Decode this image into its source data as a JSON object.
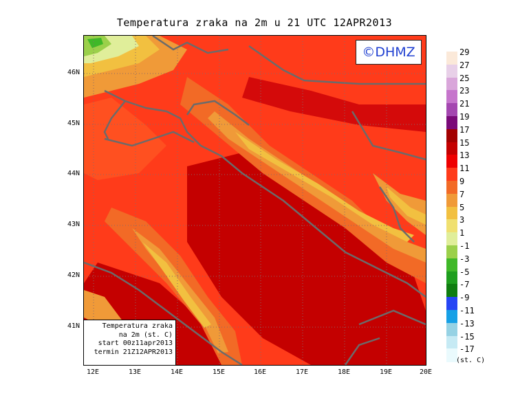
{
  "title": "Temperatura zraka na 2m u 21 UTC 12APR2013",
  "logo": "©DHMZ",
  "info_box": {
    "line1": "Temperatura zraka",
    "line2": "na 2m (st. C)",
    "line3": "start 00z11apr2013",
    "line4": "termin 21Z12APR2013"
  },
  "axes": {
    "y_ticks": [
      "46N",
      "45N",
      "44N",
      "43N",
      "42N",
      "41N"
    ],
    "x_ticks": [
      "12E",
      "13E",
      "14E",
      "15E",
      "16E",
      "17E",
      "18E",
      "19E",
      "20E"
    ]
  },
  "legend": {
    "labels": [
      "29",
      "27",
      "25",
      "23",
      "21",
      "19",
      "17",
      "15",
      "13",
      "11",
      "9",
      "7",
      "5",
      "3",
      "1",
      "-1",
      "-3",
      "-5",
      "-7",
      "-9",
      "-11",
      "-13",
      "-15",
      "-17"
    ],
    "colors": [
      "#fbe9d9",
      "#e8d0e8",
      "#d9a6da",
      "#c675cc",
      "#a447b0",
      "#7a0a78",
      "#a30000",
      "#c40000",
      "#ee0000",
      "#ff3b1a",
      "#f26a26",
      "#f09a38",
      "#f2c040",
      "#f0e070",
      "#e0ee9a",
      "#9bd04a",
      "#3fb828",
      "#1e9e1e",
      "#0f7d10",
      "#2645f4",
      "#16a0e6",
      "#96d2e4",
      "#c6eaf4",
      "#eafafd"
    ],
    "units": "(st. C)"
  }
}
